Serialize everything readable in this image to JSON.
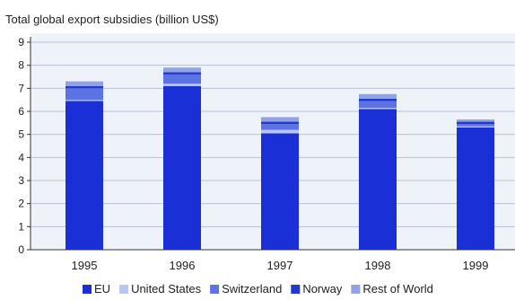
{
  "chart_data": {
    "type": "bar",
    "stacked": true,
    "title": "Total global export subsidies (billion US$)",
    "xlabel": "",
    "ylabel": "",
    "ylim": [
      0,
      9
    ],
    "y_ticks": [
      "0",
      "1",
      "2",
      "3",
      "4",
      "5",
      "6",
      "7",
      "8",
      "9"
    ],
    "grid": true,
    "legend_position": "bottom",
    "categories": [
      "1995",
      "1996",
      "1997",
      "1998",
      "1999"
    ],
    "series": [
      {
        "name": "EU",
        "color": "#1a2fd6",
        "values": [
          6.45,
          7.1,
          5.05,
          6.1,
          5.3
        ]
      },
      {
        "name": "United States",
        "color": "#b9c6f0",
        "values": [
          0.05,
          0.1,
          0.15,
          0.05,
          0.05
        ]
      },
      {
        "name": "Switzerland",
        "color": "#5c73e4",
        "values": [
          0.5,
          0.4,
          0.25,
          0.3,
          0.1
        ]
      },
      {
        "name": "Norway",
        "color": "#2239cc",
        "values": [
          0.1,
          0.1,
          0.1,
          0.1,
          0.1
        ]
      },
      {
        "name": "Rest of World",
        "color": "#8fa2ea",
        "values": [
          0.2,
          0.2,
          0.2,
          0.2,
          0.1
        ]
      }
    ]
  }
}
